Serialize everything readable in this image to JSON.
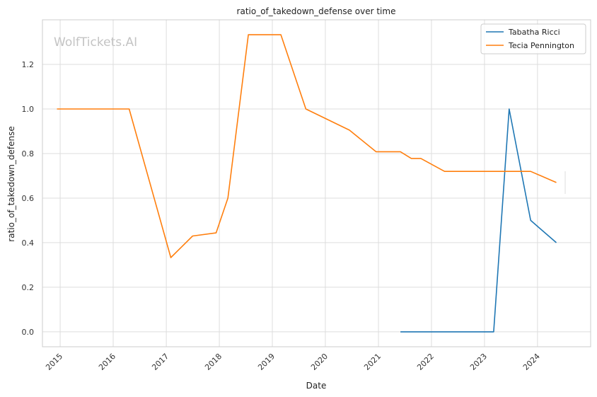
{
  "chart_data": {
    "type": "line",
    "title": "ratio_of_takedown_defense over time",
    "xlabel": "Date",
    "ylabel": "ratio_of_takedown_defense",
    "watermark": "WolfTickets.AI",
    "x_ticks": [
      "2015",
      "2016",
      "2017",
      "2018",
      "2019",
      "2020",
      "2021",
      "2022",
      "2023",
      "2024"
    ],
    "y_ticks": [
      "0.0",
      "0.2",
      "0.4",
      "0.6",
      "0.8",
      "1.0",
      "1.2"
    ],
    "xlim": [
      "2014-09-01",
      "2025-01-01"
    ],
    "ylim": [
      -0.067,
      1.4
    ],
    "grid": true,
    "legend_position": "top-right",
    "series": [
      {
        "name": "Tabatha Ricci",
        "color": "#1f77b4",
        "points": [
          [
            "2021-06-01",
            0.0
          ],
          [
            "2023-03-05",
            0.0
          ],
          [
            "2023-06-20",
            1.0
          ],
          [
            "2023-11-15",
            0.5
          ],
          [
            "2024-05-10",
            0.4
          ]
        ]
      },
      {
        "name": "Tecia Pennington",
        "color": "#ff7f0e",
        "points": [
          [
            "2014-12-10",
            1.0
          ],
          [
            "2016-04-20",
            1.0
          ],
          [
            "2017-02-01",
            0.333
          ],
          [
            "2017-07-01",
            0.43
          ],
          [
            "2017-12-10",
            0.444
          ],
          [
            "2018-03-01",
            0.6
          ],
          [
            "2018-07-20",
            1.333
          ],
          [
            "2019-03-01",
            1.333
          ],
          [
            "2019-08-20",
            1.0
          ],
          [
            "2020-06-15",
            0.905
          ],
          [
            "2020-12-15",
            0.808
          ],
          [
            "2021-06-01",
            0.808
          ],
          [
            "2021-08-15",
            0.778
          ],
          [
            "2021-10-20",
            0.778
          ],
          [
            "2022-04-01",
            0.72
          ],
          [
            "2023-11-15",
            0.72
          ],
          [
            "2024-05-10",
            0.67
          ]
        ]
      }
    ]
  }
}
